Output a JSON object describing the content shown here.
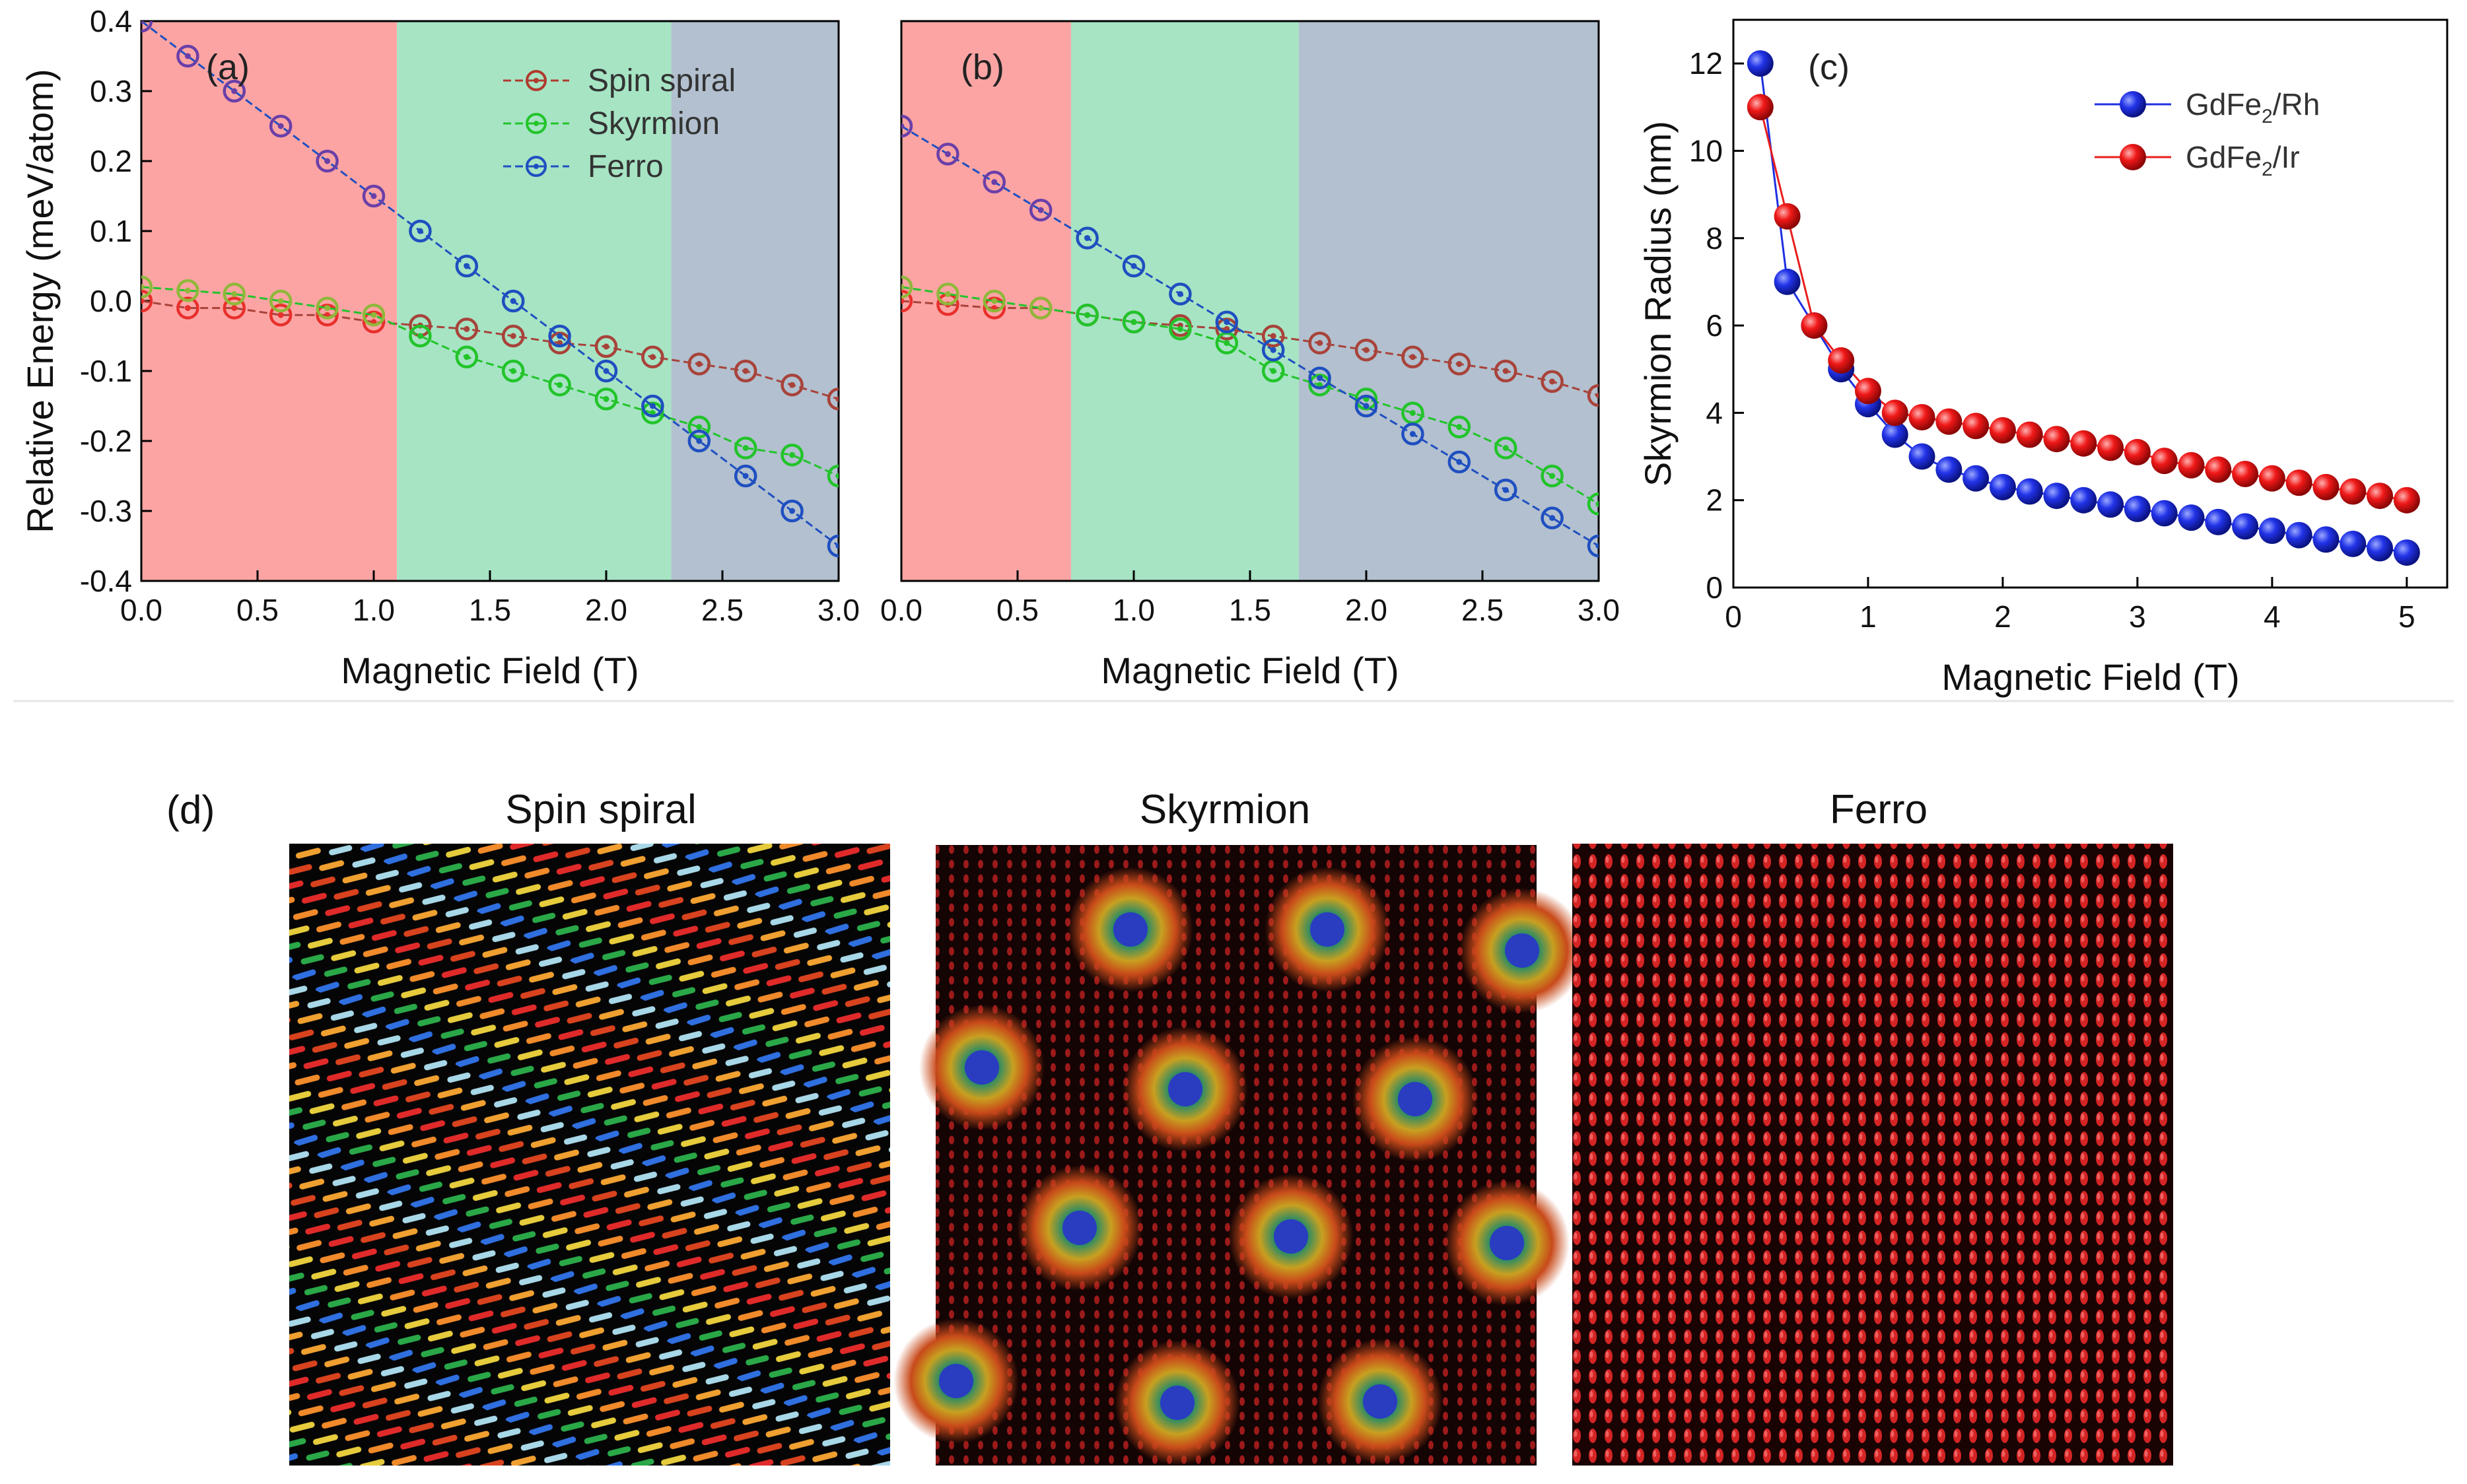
{
  "figure": {
    "colors": {
      "region_red": "#fca4a4",
      "region_green": "#a6e4c4",
      "region_blue": "#b2c0cf",
      "divider": "#e6e6e6"
    }
  },
  "chart_data": [
    {
      "id": "a",
      "panel_label": "(a)",
      "type": "line",
      "xlabel": "Magnetic Field (T)",
      "ylabel": "Relative Energy (meV/atom)",
      "xlim": [
        0,
        3.0
      ],
      "ylim": [
        -0.4,
        0.4
      ],
      "xticks": [
        "0.0",
        "0.5",
        "1.0",
        "1.5",
        "2.0",
        "2.5",
        "3.0"
      ],
      "yticks": [
        "-0.4",
        "-0.3",
        "-0.2",
        "-0.1",
        "0.0",
        "0.1",
        "0.2",
        "0.3",
        "0.4"
      ],
      "regions": [
        {
          "from": 0,
          "to": 1.1,
          "color": "#fca4a4"
        },
        {
          "from": 1.1,
          "to": 2.28,
          "color": "#a6e4c4"
        },
        {
          "from": 2.28,
          "to": 3.0,
          "color": "#b2c0cf"
        }
      ],
      "x": [
        0,
        0.2,
        0.4,
        0.6,
        0.8,
        1.0,
        1.2,
        1.4,
        1.6,
        1.8,
        2.0,
        2.2,
        2.4,
        2.6,
        2.8,
        3.0
      ],
      "series": [
        {
          "name": "Spin spiral",
          "color": "#b03a2e",
          "colors": [
            "#e8302c",
            "#e8302c",
            "#e8302c",
            "#e8302c",
            "#e8302c",
            "#e8302c",
            "#a8433a",
            "#a8433a",
            "#a8433a",
            "#a8433a",
            "#a8433a",
            "#a8433a",
            "#a8433a",
            "#a8433a",
            "#a8433a",
            "#a8433a"
          ],
          "values": [
            0.0,
            -0.01,
            -0.01,
            -0.02,
            -0.02,
            -0.03,
            -0.035,
            -0.04,
            -0.05,
            -0.06,
            -0.065,
            -0.08,
            -0.09,
            -0.1,
            -0.12,
            -0.14
          ]
        },
        {
          "name": "Skyrmion",
          "color": "#22c42a",
          "colors": [
            "#8fb83a",
            "#8fb83a",
            "#8fb83a",
            "#8fb83a",
            "#8fb83a",
            "#8fb83a",
            "#22c42a",
            "#22c42a",
            "#22c42a",
            "#22c42a",
            "#22c42a",
            "#22c42a",
            "#22c42a",
            "#22c42a",
            "#22c42a",
            "#22c42a"
          ],
          "values": [
            0.02,
            0.015,
            0.01,
            0.0,
            -0.01,
            -0.02,
            -0.05,
            -0.08,
            -0.1,
            -0.12,
            -0.14,
            -0.16,
            -0.18,
            -0.21,
            -0.22,
            -0.25
          ]
        },
        {
          "name": "Ferro",
          "color": "#1f4fc0",
          "colors": [
            "#6a3fa8",
            "#6a3fa8",
            "#6a3fa8",
            "#6a3fa8",
            "#6a3fa8",
            "#6a3fa8",
            "#1f4fc0",
            "#1f4fc0",
            "#1f4fc0",
            "#1f4fc0",
            "#1f4fc0",
            "#1f4fc0",
            "#1f4fc0",
            "#1f4fc0",
            "#1f4fc0",
            "#1f4fc0"
          ],
          "values": [
            0.4,
            0.35,
            0.3,
            0.25,
            0.2,
            0.15,
            0.1,
            0.05,
            0.0,
            -0.05,
            -0.1,
            -0.15,
            -0.2,
            -0.25,
            -0.3,
            -0.35
          ]
        }
      ],
      "legend": "top-right"
    },
    {
      "id": "b",
      "panel_label": "(b)",
      "type": "line",
      "xlabel": "Magnetic Field (T)",
      "ylabel": "",
      "xlim": [
        0,
        3.0
      ],
      "ylim": [
        -0.4,
        0.4
      ],
      "xticks": [
        "0.0",
        "0.5",
        "1.0",
        "1.5",
        "2.0",
        "2.5",
        "3.0"
      ],
      "regions": [
        {
          "from": 0,
          "to": 0.73,
          "color": "#fca4a4"
        },
        {
          "from": 0.73,
          "to": 1.71,
          "color": "#a6e4c4"
        },
        {
          "from": 1.71,
          "to": 3.0,
          "color": "#b2c0cf"
        }
      ],
      "x": [
        0,
        0.2,
        0.4,
        0.6,
        0.8,
        1.0,
        1.2,
        1.4,
        1.6,
        1.8,
        2.0,
        2.2,
        2.4,
        2.6,
        2.8,
        3.0
      ],
      "series": [
        {
          "name": "Spin spiral",
          "colors": [
            "#e8302c",
            "#e8302c",
            "#e8302c",
            "#e8302c",
            "#a8433a",
            "#a8433a",
            "#a8433a",
            "#a8433a",
            "#a8433a",
            "#a8433a",
            "#a8433a",
            "#a8433a",
            "#a8433a",
            "#a8433a",
            "#a8433a",
            "#a8433a"
          ],
          "values": [
            0.0,
            -0.005,
            -0.01,
            -0.01,
            -0.02,
            -0.03,
            -0.035,
            -0.04,
            -0.05,
            -0.06,
            -0.07,
            -0.08,
            -0.09,
            -0.1,
            -0.115,
            -0.135
          ]
        },
        {
          "name": "Skyrmion",
          "colors": [
            "#8fb83a",
            "#8fb83a",
            "#8fb83a",
            "#8fb83a",
            "#22c42a",
            "#22c42a",
            "#22c42a",
            "#22c42a",
            "#22c42a",
            "#22c42a",
            "#22c42a",
            "#22c42a",
            "#22c42a",
            "#22c42a",
            "#22c42a",
            "#22c42a"
          ],
          "values": [
            0.02,
            0.01,
            0.0,
            -0.01,
            -0.02,
            -0.03,
            -0.04,
            -0.06,
            -0.1,
            -0.12,
            -0.14,
            -0.16,
            -0.18,
            -0.21,
            -0.25,
            -0.29
          ]
        },
        {
          "name": "Ferro",
          "colors": [
            "#6a3fa8",
            "#6a3fa8",
            "#6a3fa8",
            "#6a3fa8",
            "#1f4fc0",
            "#1f4fc0",
            "#1f4fc0",
            "#1f4fc0",
            "#1f4fc0",
            "#1f4fc0",
            "#1f4fc0",
            "#1f4fc0",
            "#1f4fc0",
            "#1f4fc0",
            "#1f4fc0",
            "#1f4fc0"
          ],
          "values": [
            0.25,
            0.21,
            0.17,
            0.13,
            0.09,
            0.05,
            0.01,
            -0.03,
            -0.07,
            -0.11,
            -0.15,
            -0.19,
            -0.23,
            -0.27,
            -0.31,
            -0.35
          ]
        }
      ]
    },
    {
      "id": "c",
      "panel_label": "(c)",
      "type": "line",
      "xlabel": "Magnetic Field (T)",
      "ylabel": "Skyrmion Radius (nm)",
      "xlim": [
        0,
        5.3
      ],
      "ylim": [
        0,
        13
      ],
      "xticks": [
        "0",
        "1",
        "2",
        "3",
        "4",
        "5"
      ],
      "yticks": [
        "0",
        "2",
        "4",
        "6",
        "8",
        "10",
        "12"
      ],
      "x": [
        0.2,
        0.4,
        0.6,
        0.8,
        1.0,
        1.2,
        1.4,
        1.6,
        1.8,
        2.0,
        2.2,
        2.4,
        2.6,
        2.8,
        3.0,
        3.2,
        3.4,
        3.6,
        3.8,
        4.0,
        4.2,
        4.4,
        4.6,
        4.8,
        5.0
      ],
      "series": [
        {
          "name": "GdFe2/Rh",
          "name_main": "GdFe",
          "name_sub": "2",
          "name_tail": "/Rh",
          "color": "#1f2fe0",
          "values": [
            12.0,
            7.0,
            6.0,
            5.0,
            4.2,
            3.5,
            3.0,
            2.7,
            2.5,
            2.3,
            2.2,
            2.1,
            2.0,
            1.9,
            1.8,
            1.7,
            1.6,
            1.5,
            1.4,
            1.3,
            1.2,
            1.1,
            1.0,
            0.9,
            0.8
          ]
        },
        {
          "name": "GdFe2/Ir",
          "name_main": "GdFe",
          "name_sub": "2",
          "name_tail": "/Ir",
          "color": "#e81e1e",
          "values": [
            11.0,
            8.5,
            6.0,
            5.2,
            4.5,
            4.0,
            3.9,
            3.8,
            3.7,
            3.6,
            3.5,
            3.4,
            3.3,
            3.2,
            3.1,
            2.9,
            2.8,
            2.7,
            2.6,
            2.5,
            2.4,
            2.3,
            2.2,
            2.1,
            2.0
          ]
        }
      ],
      "legend": "top-right"
    }
  ],
  "panel_d": {
    "label": "(d)",
    "titles": [
      "Spin spiral",
      "Skyrmion",
      "Ferro"
    ]
  }
}
